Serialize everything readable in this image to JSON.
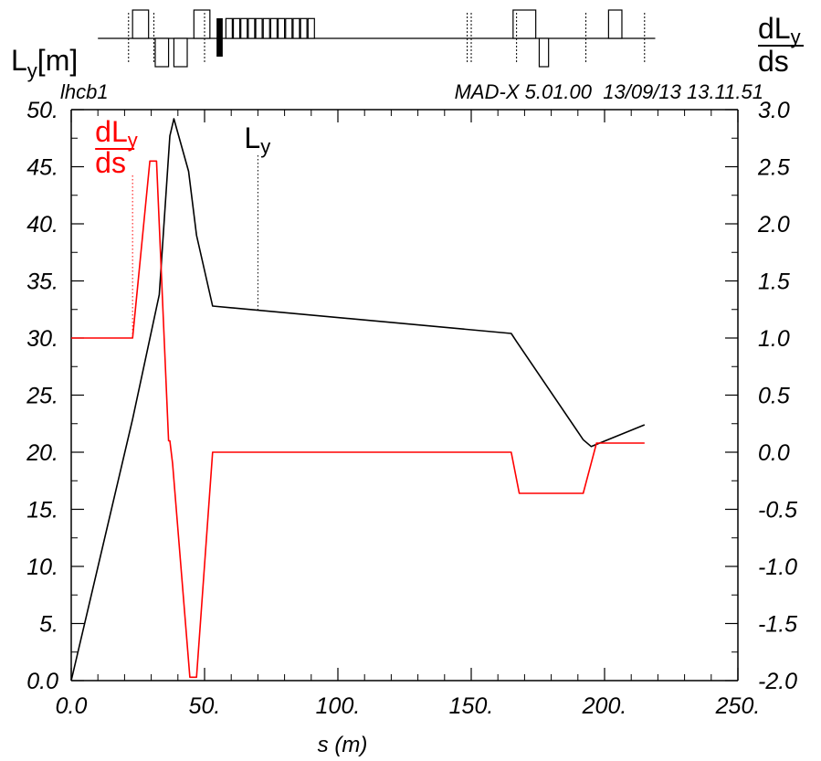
{
  "header": {
    "sequence_name": "lhcb1",
    "program_info": "MAD-X 5.01.00  13/09/13 13.11.51"
  },
  "left_axis_title": {
    "main": "L",
    "sub": "y",
    "unit": "[m]"
  },
  "right_axis_title": {
    "numerator_main": "dL",
    "numerator_sub": "y",
    "denominator": "ds"
  },
  "x_axis_title": "s (m)",
  "chart_data": {
    "type": "line",
    "xlabel": "s (m)",
    "xlim": [
      0,
      250
    ],
    "ylim_left": [
      0,
      50
    ],
    "ylim_right": [
      -2.0,
      3.0
    ],
    "x_tick_labels": [
      "0.0",
      "50.",
      "100.",
      "150.",
      "200.",
      "250."
    ],
    "y_left_tick_labels": [
      "0.0",
      "5.",
      "10.",
      "15.",
      "20.",
      "25.",
      "30.",
      "35.",
      "40.",
      "45.",
      "50."
    ],
    "y_right_tick_labels": [
      "-2.0",
      "-1.5",
      "-1.0",
      "-0.5",
      "0.0",
      "0.5",
      "1.0",
      "1.5",
      "2.0",
      "2.5",
      "3.0"
    ],
    "series": [
      {
        "name": "L_y",
        "axis": "left",
        "color": "#000000",
        "label_main": "L",
        "label_sub": "y",
        "label_s": 70,
        "x": [
          0,
          23,
          33,
          37,
          38.5,
          44,
          47,
          53,
          165,
          167,
          192,
          195,
          215
        ],
        "y": [
          0,
          22.9,
          33.8,
          47.7,
          49.2,
          44.6,
          39.0,
          32.8,
          30.4,
          29.7,
          21.1,
          20.5,
          22.4
        ]
      },
      {
        "name": "dL_y/ds",
        "axis": "right",
        "color": "#ff0000",
        "label_main": "dL",
        "label_sub": "y",
        "label_den": "ds",
        "label_s": 23,
        "x": [
          0,
          23,
          29.5,
          32,
          36.5,
          37,
          38,
          44.5,
          47,
          53,
          165,
          168,
          192,
          197,
          215
        ],
        "y": [
          1.0,
          1.0,
          2.55,
          2.55,
          0.1,
          0.1,
          -0.1,
          -1.97,
          -1.97,
          0.0,
          0.0,
          -0.36,
          -0.36,
          0.08,
          0.08
        ]
      }
    ],
    "elements": [
      {
        "s": 23,
        "w": 6,
        "h": 1
      },
      {
        "s": 31.5,
        "w": 5,
        "h": -1
      },
      {
        "s": 38.5,
        "w": 5,
        "h": -1
      },
      {
        "s": 46,
        "w": 6,
        "h": 1
      },
      {
        "s": 54.5,
        "w": 2.3,
        "h": 1,
        "solid": true
      },
      {
        "s": 58,
        "w": 2.4,
        "h": 0.7
      },
      {
        "s": 60.8,
        "w": 2.4,
        "h": 0.7
      },
      {
        "s": 63.6,
        "w": 2.4,
        "h": 0.7
      },
      {
        "s": 66.4,
        "w": 2.4,
        "h": 0.7
      },
      {
        "s": 69.2,
        "w": 2.4,
        "h": 0.7
      },
      {
        "s": 72.0,
        "w": 2.4,
        "h": 0.7
      },
      {
        "s": 74.8,
        "w": 2.4,
        "h": 0.7
      },
      {
        "s": 77.6,
        "w": 2.4,
        "h": 0.7
      },
      {
        "s": 80.4,
        "w": 2.4,
        "h": 0.7
      },
      {
        "s": 83.2,
        "w": 2.4,
        "h": 0.7
      },
      {
        "s": 86.0,
        "w": 2.4,
        "h": 0.7
      },
      {
        "s": 88.8,
        "w": 2.4,
        "h": 0.7
      },
      {
        "s": 165.7,
        "w": 8.5,
        "h": 1
      },
      {
        "s": 175.5,
        "w": 3.5,
        "h": -1
      },
      {
        "s": 201.5,
        "w": 5,
        "h": 1
      }
    ],
    "markers": [
      21.5,
      31,
      50,
      148.5,
      150,
      167,
      193,
      215
    ]
  }
}
